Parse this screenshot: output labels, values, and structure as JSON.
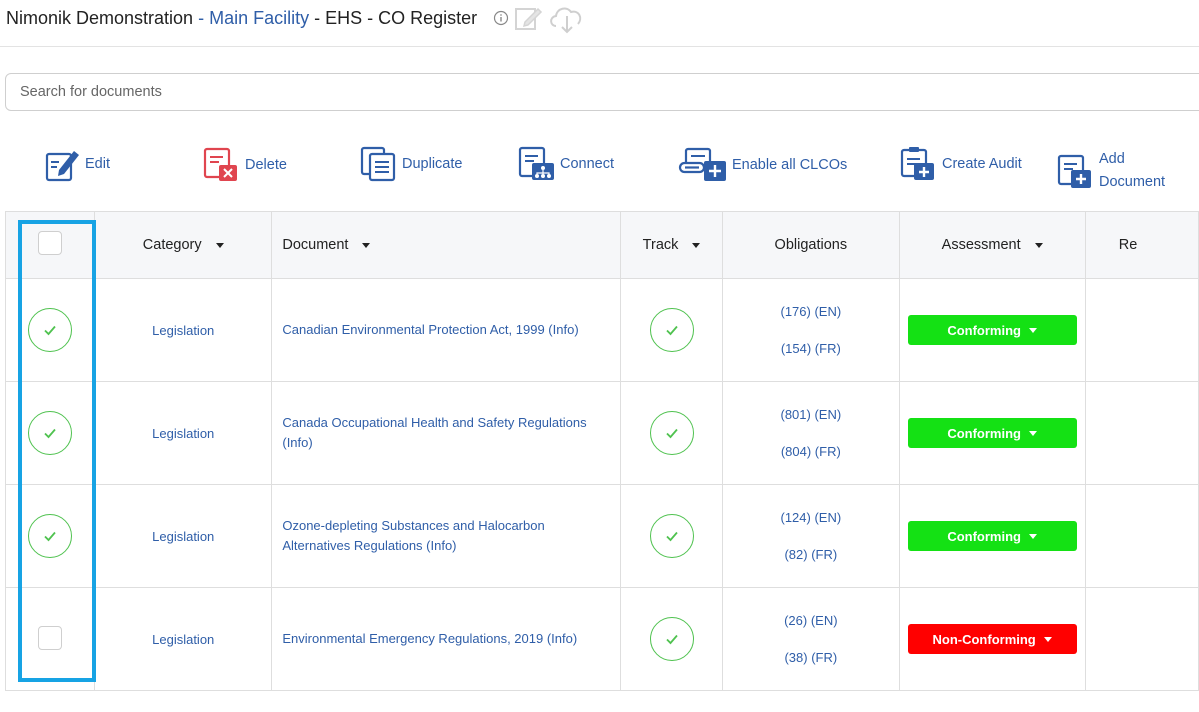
{
  "header": {
    "org": "Nimonik Demonstration",
    "sep1": " - ",
    "facility": "Main Facility",
    "sep2": " - ",
    "register": "EHS - CO Register"
  },
  "search": {
    "placeholder": "Search for documents",
    "value": ""
  },
  "toolbar": {
    "edit": "Edit",
    "delete": "Delete",
    "duplicate": "Duplicate",
    "connect": "Connect",
    "enable_all": "Enable all CLCOs",
    "create_audit": "Create Audit",
    "add_document_line1": "Add",
    "add_document_line2": "Document"
  },
  "table": {
    "columns": {
      "category": "Category",
      "document": "Document",
      "track": "Track",
      "obligations": "Obligations",
      "assessment": "Assessment",
      "next": "Re"
    },
    "rows": [
      {
        "selected": true,
        "category": "Legislation",
        "document": "Canadian Environmental Protection Act, 1999 (Info)",
        "tracked": true,
        "obligations_en": "(176) (EN)",
        "obligations_fr": "(154) (FR)",
        "assessment": "Conforming",
        "assessment_status": "conforming"
      },
      {
        "selected": true,
        "category": "Legislation",
        "document": "Canada Occupational Health and Safety Regulations (Info)",
        "tracked": true,
        "obligations_en": "(801) (EN)",
        "obligations_fr": "(804) (FR)",
        "assessment": "Conforming",
        "assessment_status": "conforming"
      },
      {
        "selected": true,
        "category": "Legislation",
        "document": "Ozone-depleting Substances and Halocarbon Alternatives Regulations (Info)",
        "tracked": true,
        "obligations_en": "(124) (EN)",
        "obligations_fr": "(82) (FR)",
        "assessment": "Conforming",
        "assessment_status": "conforming"
      },
      {
        "selected": false,
        "category": "Legislation",
        "document": "Environmental Emergency Regulations, 2019 (Info)",
        "tracked": true,
        "obligations_en": "(26) (EN)",
        "obligations_fr": "(38) (FR)",
        "assessment": "Non-Conforming",
        "assessment_status": "non-conforming"
      }
    ]
  },
  "colors": {
    "link": "#2f5ea8",
    "conforming": "#14e114",
    "non_conforming": "#ff0000",
    "check_green": "#4fc24f",
    "highlight": "#17a3e4"
  }
}
